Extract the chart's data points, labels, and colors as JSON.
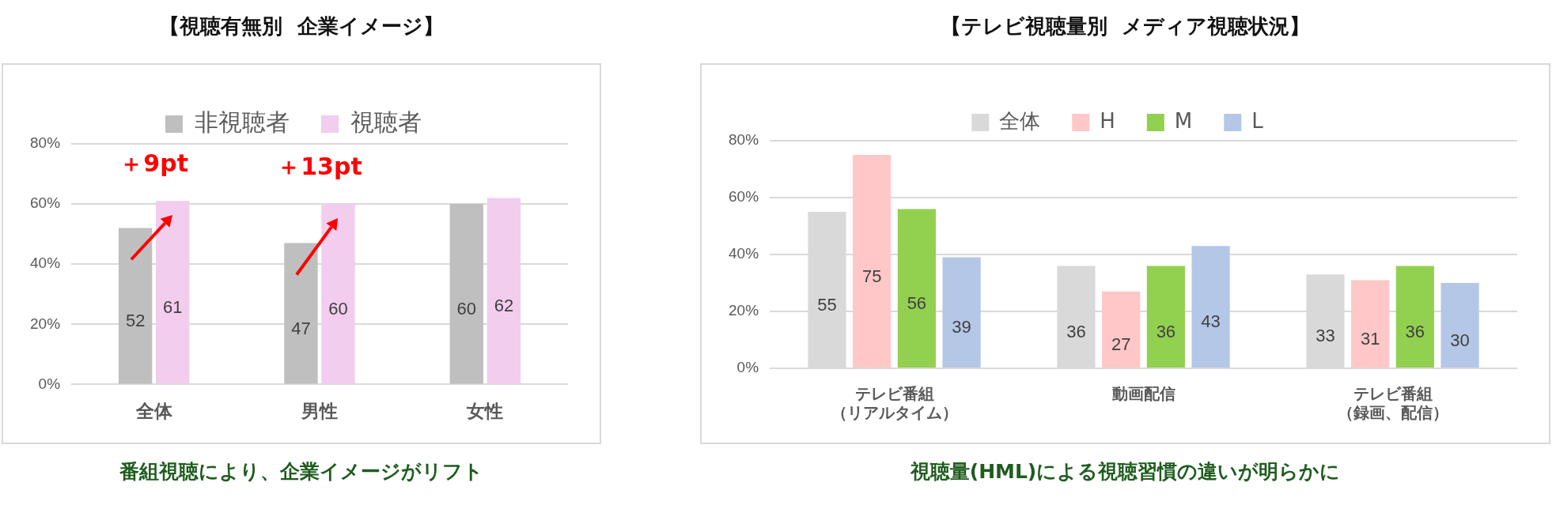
{
  "chart_data": [
    {
      "type": "bar",
      "title": "【視聴有無別  企業イメージ】",
      "categories": [
        "全体",
        "男性",
        "女性"
      ],
      "series": [
        {
          "name": "非視聴者",
          "color": "#bfbfbf",
          "values": [
            52,
            47,
            60
          ]
        },
        {
          "name": "視聴者",
          "color": "#f2cdee",
          "values": [
            61,
            60,
            62
          ]
        }
      ],
      "ylim": [
        0,
        80
      ],
      "yticks": [
        {
          "value": 0,
          "label": "0%"
        },
        {
          "value": 20,
          "label": "20%"
        },
        {
          "value": 40,
          "label": "40%"
        },
        {
          "value": 60,
          "label": "60%"
        },
        {
          "value": 80,
          "label": "80%"
        }
      ],
      "grid": "y",
      "legend": "top",
      "data_labels": true,
      "annotations": [
        "＋9pt",
        "＋13pt",
        "番組視聴により、企業イメージがリフト"
      ]
    },
    {
      "type": "bar",
      "title": "【テレビ視聴量別  メディア視聴状況】",
      "categories": [
        "テレビ番組（リアルタイム）",
        "動画配信",
        "テレビ番組（録画、配信）"
      ],
      "series": [
        {
          "name": "全体",
          "color": "#d9d9d9",
          "values": [
            55,
            36,
            33
          ]
        },
        {
          "name": "H",
          "color": "#ffc7c7",
          "values": [
            75,
            27,
            31
          ]
        },
        {
          "name": "M",
          "color": "#92d050",
          "values": [
            56,
            36,
            36
          ]
        },
        {
          "name": "L",
          "color": "#b4c7e7",
          "values": [
            39,
            43,
            30
          ]
        }
      ],
      "ylim": [
        0,
        80
      ],
      "yticks": [
        {
          "value": 0,
          "label": "0%"
        },
        {
          "value": 20,
          "label": "20%"
        },
        {
          "value": 40,
          "label": "40%"
        },
        {
          "value": 60,
          "label": "60%"
        },
        {
          "value": 80,
          "label": "80%"
        }
      ],
      "grid": "y",
      "legend": "top",
      "data_labels": true,
      "annotations": [
        "視聴量(HML)による視聴習慣の違いが明らかに"
      ]
    }
  ]
}
